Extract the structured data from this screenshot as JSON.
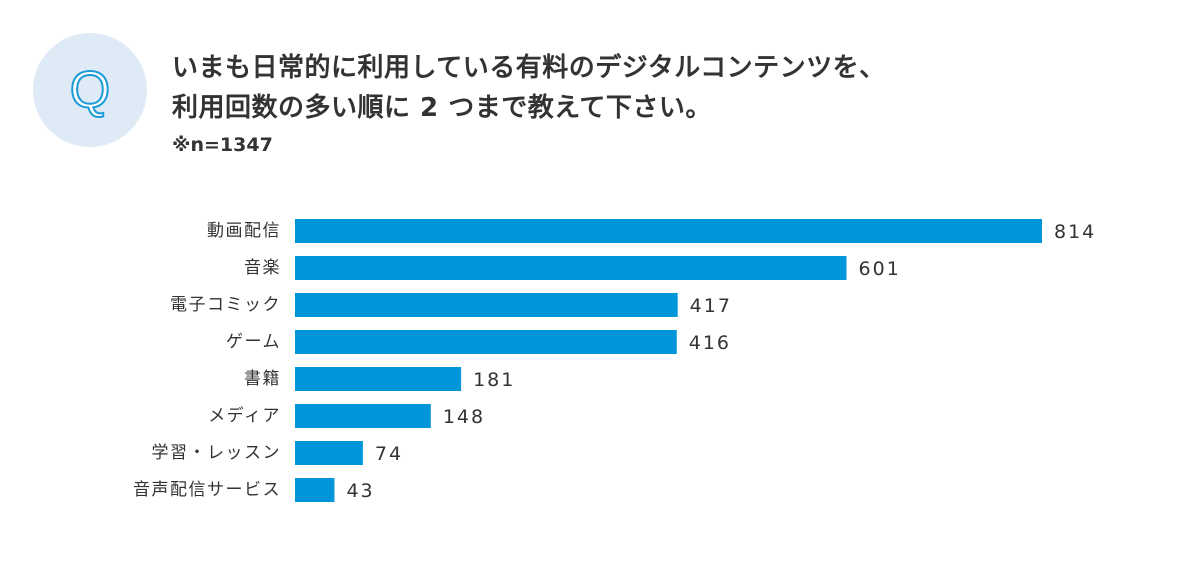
{
  "question": {
    "badge_letter": "Q",
    "line1": "いまも日常的に利用している有料のデジタルコンテンツを、",
    "line2": "利用回数の多い順に 2 つまで教えて下さい。",
    "note": "※n=1347"
  },
  "colors": {
    "bar": "#0096d9",
    "badge_bg": "#dfeaf7",
    "badge_letter": "#1a9ad6",
    "text": "#333333"
  },
  "chart_data": {
    "type": "bar",
    "orientation": "horizontal",
    "title": "",
    "xlabel": "",
    "ylabel": "",
    "xlim": [
      0,
      814
    ],
    "grid": false,
    "categories": [
      "動画配信",
      "音楽",
      "電子コミック",
      "ゲーム",
      "書籍",
      "メディア",
      "学習・レッスン",
      "音声配信サービス"
    ],
    "values": [
      814,
      601,
      417,
      416,
      181,
      148,
      74,
      43
    ]
  }
}
